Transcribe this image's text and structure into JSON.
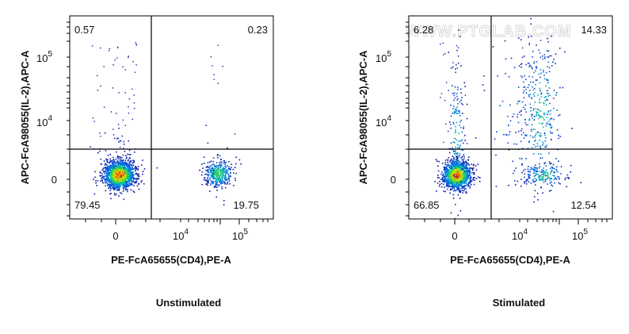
{
  "watermark": "WWW.PTGLAB.COM",
  "chart_data": [
    {
      "type": "scatter",
      "caption": "Unstimulated",
      "xlabel": "PE-FcA65655(CD4),PE-A",
      "ylabel": "APC-FcA98055(IL-2),APC-A",
      "x_scale": "biexponential",
      "y_scale": "biexponential",
      "x_ticks": [
        {
          "label": "0"
        },
        {
          "label": "10",
          "exp": "4"
        },
        {
          "label": "10",
          "exp": "5"
        }
      ],
      "y_ticks": [
        {
          "label": "0"
        },
        {
          "label": "10",
          "exp": "4"
        },
        {
          "label": "10",
          "exp": "5"
        }
      ],
      "quadrants": {
        "top_left": "0.57",
        "top_right": "0.23",
        "bottom_left": "79.45",
        "bottom_right": "19.75"
      },
      "populations": [
        {
          "name": "CD4- IL-2-",
          "weight": 0.79
        },
        {
          "name": "CD4+ IL-2-",
          "weight": 0.2
        }
      ]
    },
    {
      "type": "scatter",
      "caption": "Stimulated",
      "xlabel": "PE-FcA65655(CD4),PE-A",
      "ylabel": "APC-FcA98055(IL-2),APC-A",
      "x_scale": "biexponential",
      "y_scale": "biexponential",
      "x_ticks": [
        {
          "label": "0"
        },
        {
          "label": "10",
          "exp": "4"
        },
        {
          "label": "10",
          "exp": "5"
        }
      ],
      "y_ticks": [
        {
          "label": "0"
        },
        {
          "label": "10",
          "exp": "4"
        },
        {
          "label": "10",
          "exp": "5"
        }
      ],
      "quadrants": {
        "top_left": "6.28",
        "top_right": "14.33",
        "bottom_left": "66.85",
        "bottom_right": "12.54"
      },
      "populations": [
        {
          "name": "CD4- IL-2-",
          "weight": 0.67
        },
        {
          "name": "CD4- IL-2+",
          "weight": 0.06
        },
        {
          "name": "CD4+ IL-2+",
          "weight": 0.14
        },
        {
          "name": "CD4+ IL-2-",
          "weight": 0.13
        }
      ]
    }
  ]
}
